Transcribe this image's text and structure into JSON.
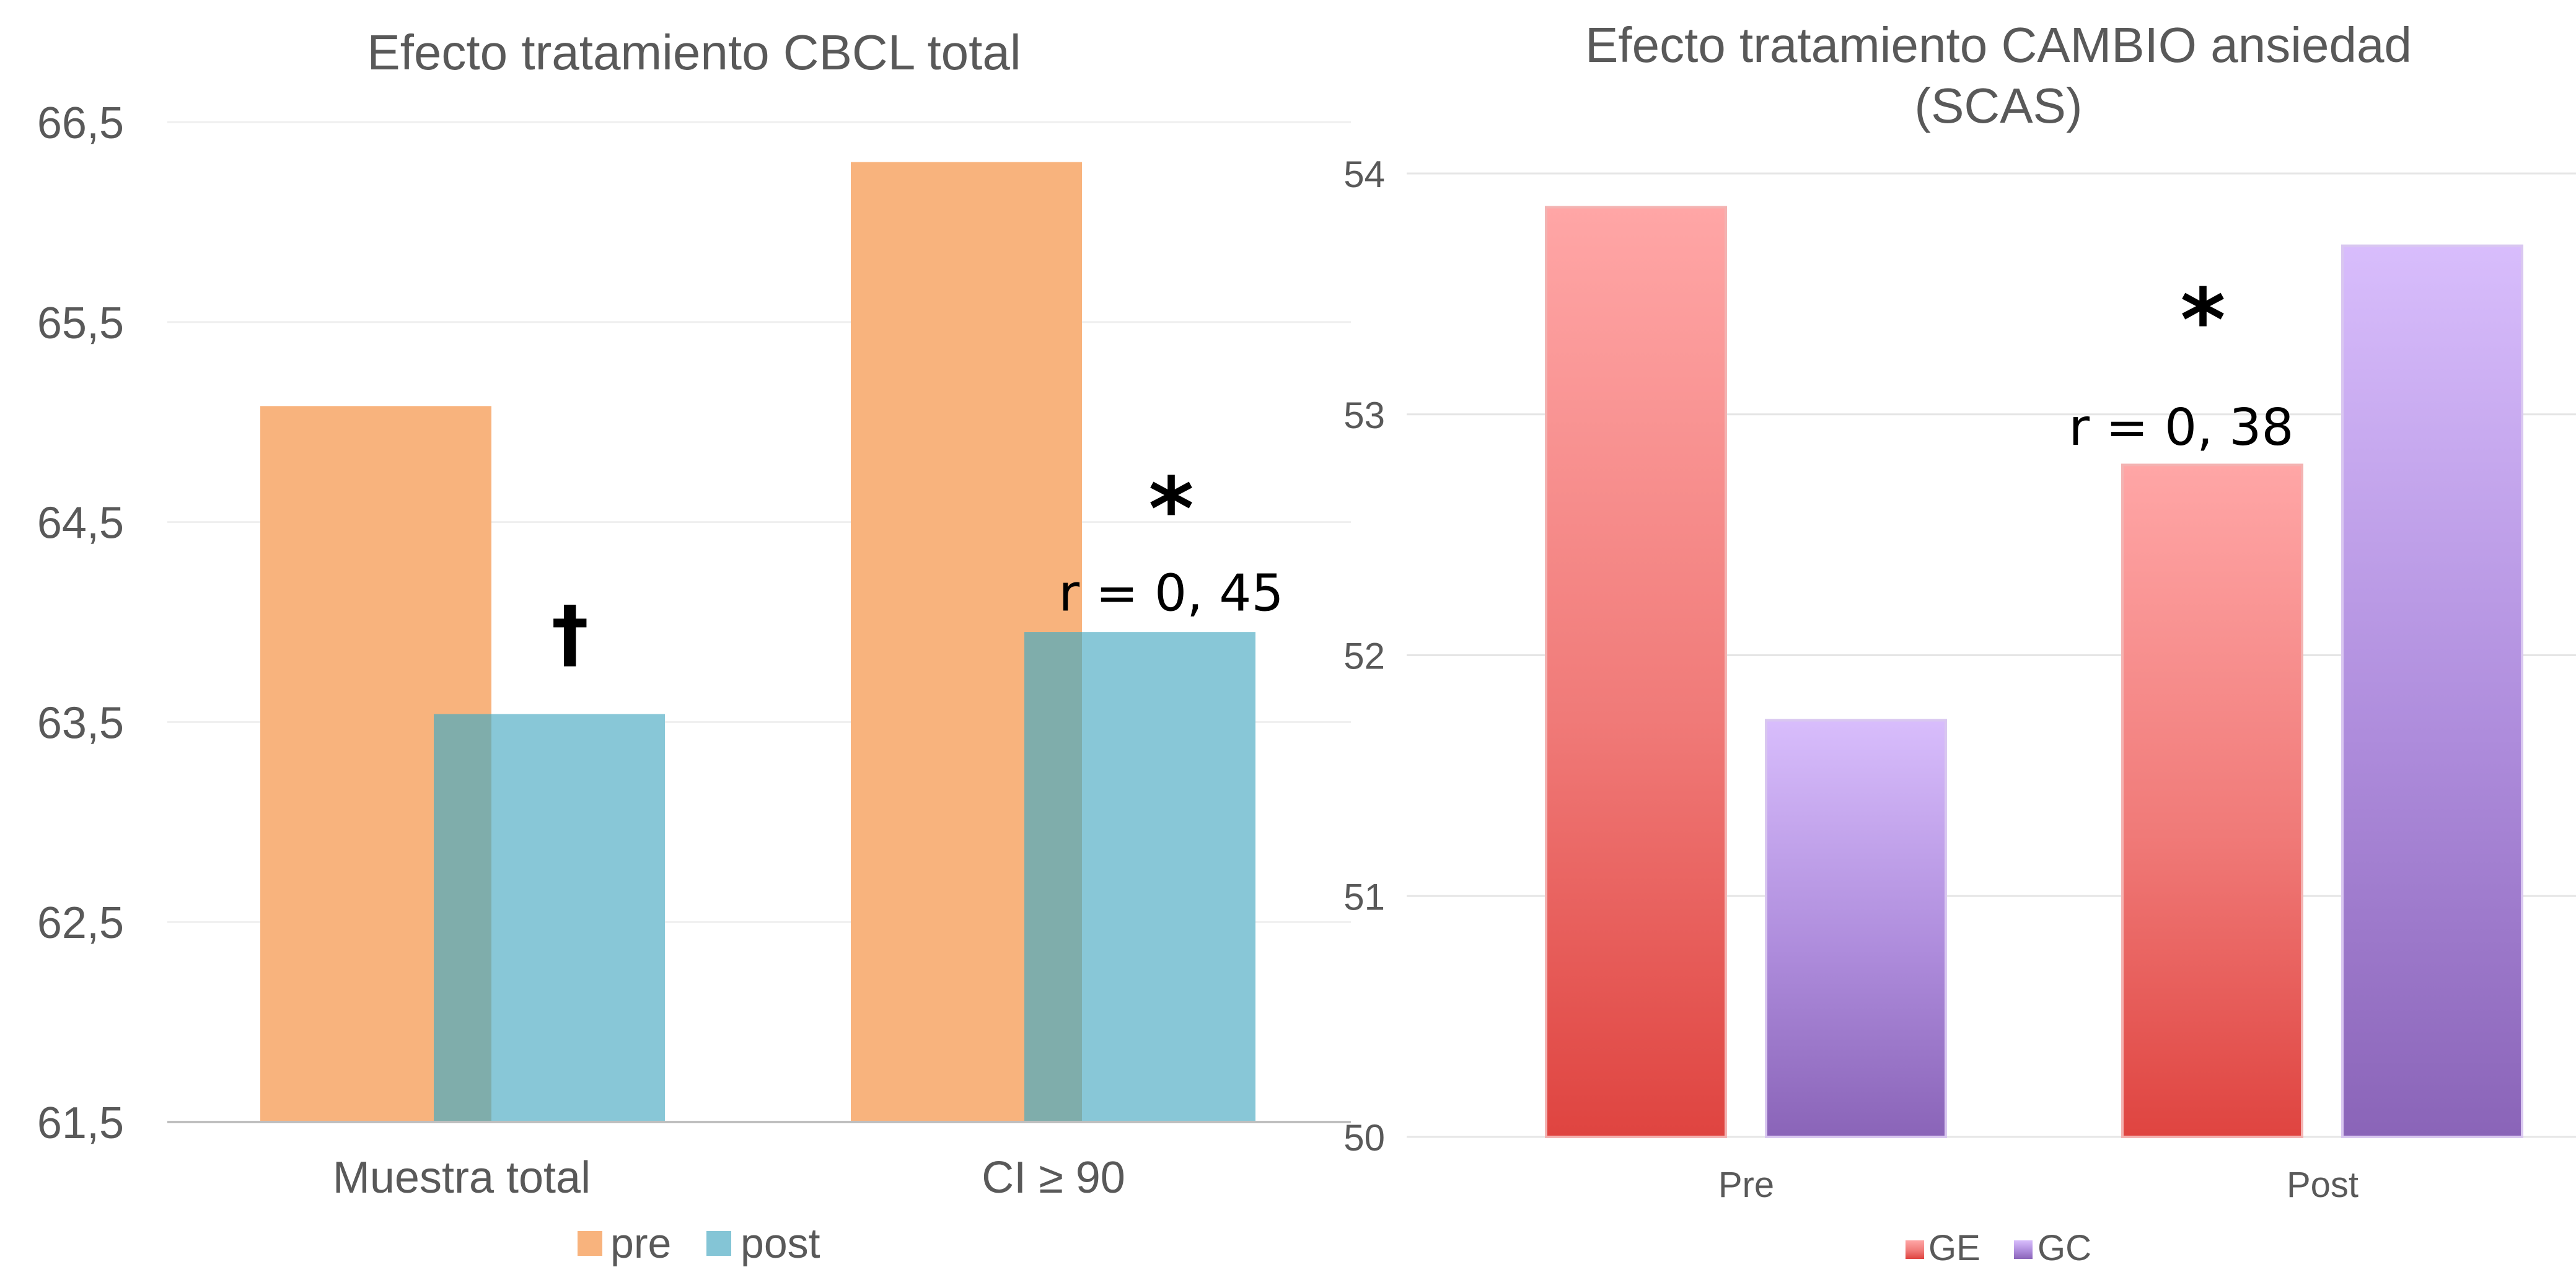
{
  "chart_data": [
    {
      "type": "bar",
      "title": "Efecto tratamiento CBCL total",
      "categories": [
        "Muestra total",
        "CI ≥ 90"
      ],
      "series": [
        {
          "name": "pre",
          "values": [
            65.08,
            66.3
          ],
          "color": "#f8b37d"
        },
        {
          "name": "post",
          "values": [
            63.54,
            63.95
          ],
          "color": "#84c5d6"
        }
      ],
      "ylim": [
        61.5,
        66.5
      ],
      "yticks": [
        "61,5",
        "62,5",
        "63,5",
        "64,5",
        "65,5",
        "66,5"
      ],
      "ytick_values": [
        61.5,
        62.5,
        63.5,
        64.5,
        65.5,
        66.5
      ],
      "grid": true,
      "legend_position": "bottom",
      "annotations": [
        {
          "text": "†",
          "category": 0,
          "series": 1,
          "value": 64.0
        },
        {
          "text": "*",
          "category": 1,
          "series": 1,
          "value": 64.6
        },
        {
          "text": "r = 0, 45",
          "category": 1,
          "series": 1,
          "value": 64.15
        }
      ]
    },
    {
      "type": "bar",
      "title": "Efecto tratamiento CAMBIO ansiedad (SCAS)",
      "title_lines": [
        "Efecto tratamiento CAMBIO ansiedad",
        "(SCAS)"
      ],
      "categories": [
        "Pre",
        "Post"
      ],
      "series": [
        {
          "name": "GE",
          "values": [
            53.86,
            52.79
          ],
          "color": "#e0423f"
        },
        {
          "name": "GC",
          "values": [
            51.73,
            53.7
          ],
          "color": "#8c68b7"
        }
      ],
      "ylim": [
        50,
        54
      ],
      "yticks": [
        "50",
        "51",
        "52",
        "53",
        "54"
      ],
      "ytick_values": [
        50,
        51,
        52,
        53,
        54
      ],
      "grid": true,
      "legend_position": "bottom",
      "annotations": [
        {
          "text": "*",
          "category": 1,
          "series": 0,
          "value": 53.42
        },
        {
          "text": "r = 0, 38",
          "category": 1,
          "series": 0,
          "value": 52.95
        }
      ]
    }
  ]
}
